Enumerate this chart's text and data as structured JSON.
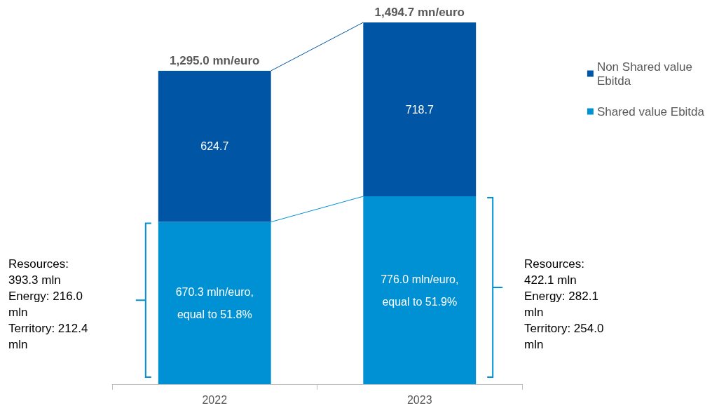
{
  "chart_data": {
    "type": "bar",
    "stacked": true,
    "categories": [
      "2022",
      "2023"
    ],
    "series": [
      {
        "name": "Shared value Ebitda",
        "color": "#0091d5",
        "values": [
          670.3,
          776.0
        ],
        "value_labels": [
          "670.3 mln/euro,\n\nequal to 51.8%",
          "776.0 mln/euro,\n\nequal to 51.9%"
        ]
      },
      {
        "name": "Non Shared value\nEbitda",
        "color": "#0055a5",
        "values": [
          624.7,
          718.7
        ],
        "value_labels": [
          "624.7",
          "718.7"
        ]
      }
    ],
    "totals": [
      "1,295.0 mn/euro",
      "1,494.7 mn/euro"
    ],
    "annotations": [
      "Resources:\n393.3 mln\nEnergy: 216.0\nmln\nTerritory: 212.4\nmln",
      "Resources:\n422.1 mln\nEnergy: 282.1\nmln\nTerritory: 254.0\nmln"
    ],
    "legend": "top right"
  }
}
